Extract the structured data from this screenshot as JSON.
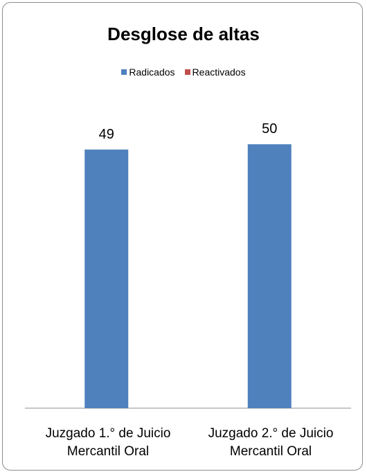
{
  "chart_data": {
    "type": "bar",
    "title": "Desglose de altas",
    "categories": [
      "Juzgado 1.° de Juicio Mercantil Oral",
      "Juzgado 2.° de Juicio Mercantil Oral"
    ],
    "category_lines": [
      [
        "Juzgado 1.° de Juicio",
        "Mercantil Oral"
      ],
      [
        "Juzgado 2.° de Juicio",
        "Mercantil Oral"
      ]
    ],
    "series": [
      {
        "name": "Radicados",
        "values": [
          49,
          50
        ],
        "color": "#4f81bd"
      },
      {
        "name": "Reactivados",
        "values": [
          0,
          0
        ],
        "color": "#c0504d"
      }
    ],
    "data_labels": [
      "49",
      "50"
    ],
    "ylim": [
      0,
      60
    ],
    "grid": false,
    "legend_position": "top"
  }
}
